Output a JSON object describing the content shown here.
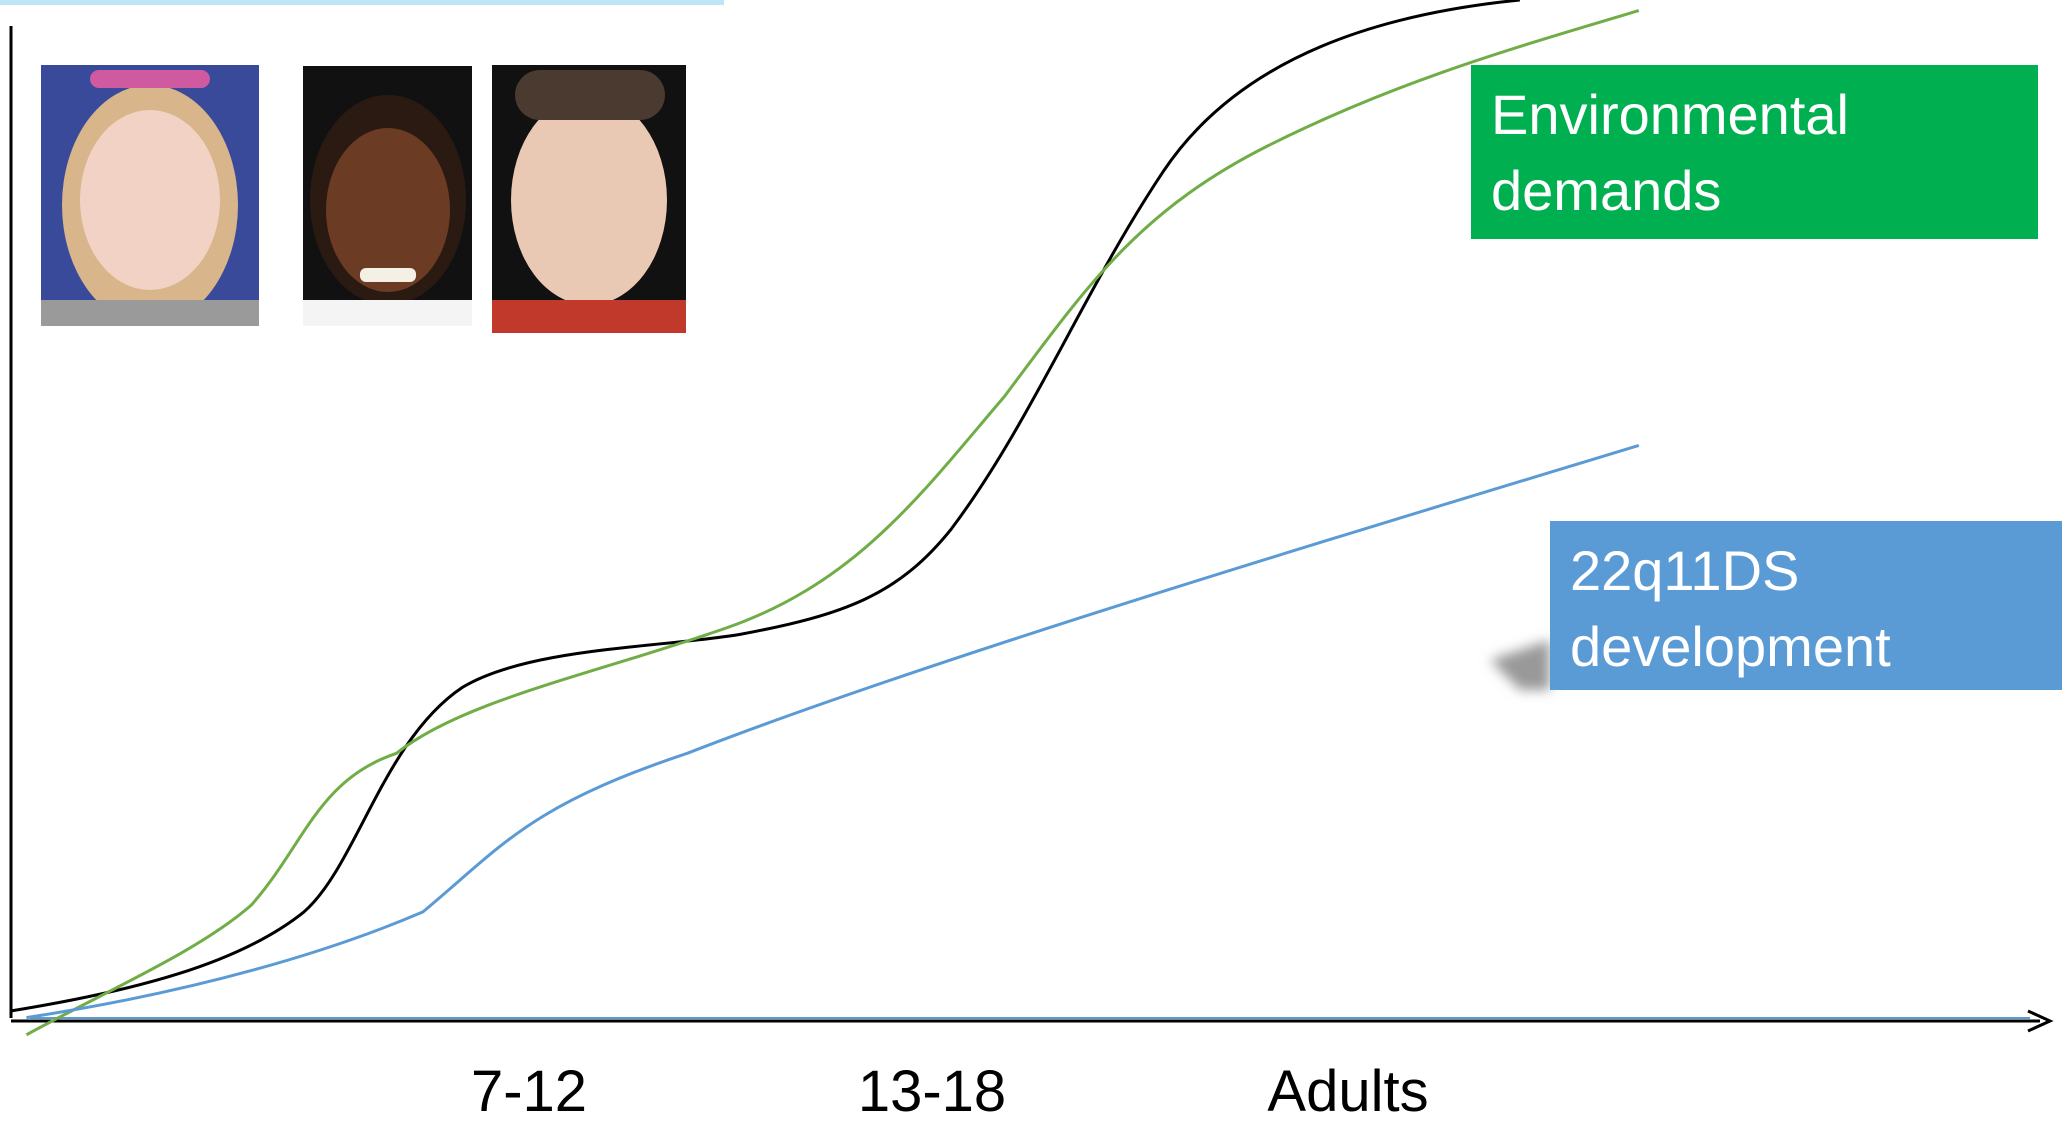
{
  "boxes": {
    "environmental": "Environmental demands",
    "development": "22q11DS development"
  },
  "x_axis_labels": [
    "7-12",
    "13-18",
    "Adults"
  ]
}
